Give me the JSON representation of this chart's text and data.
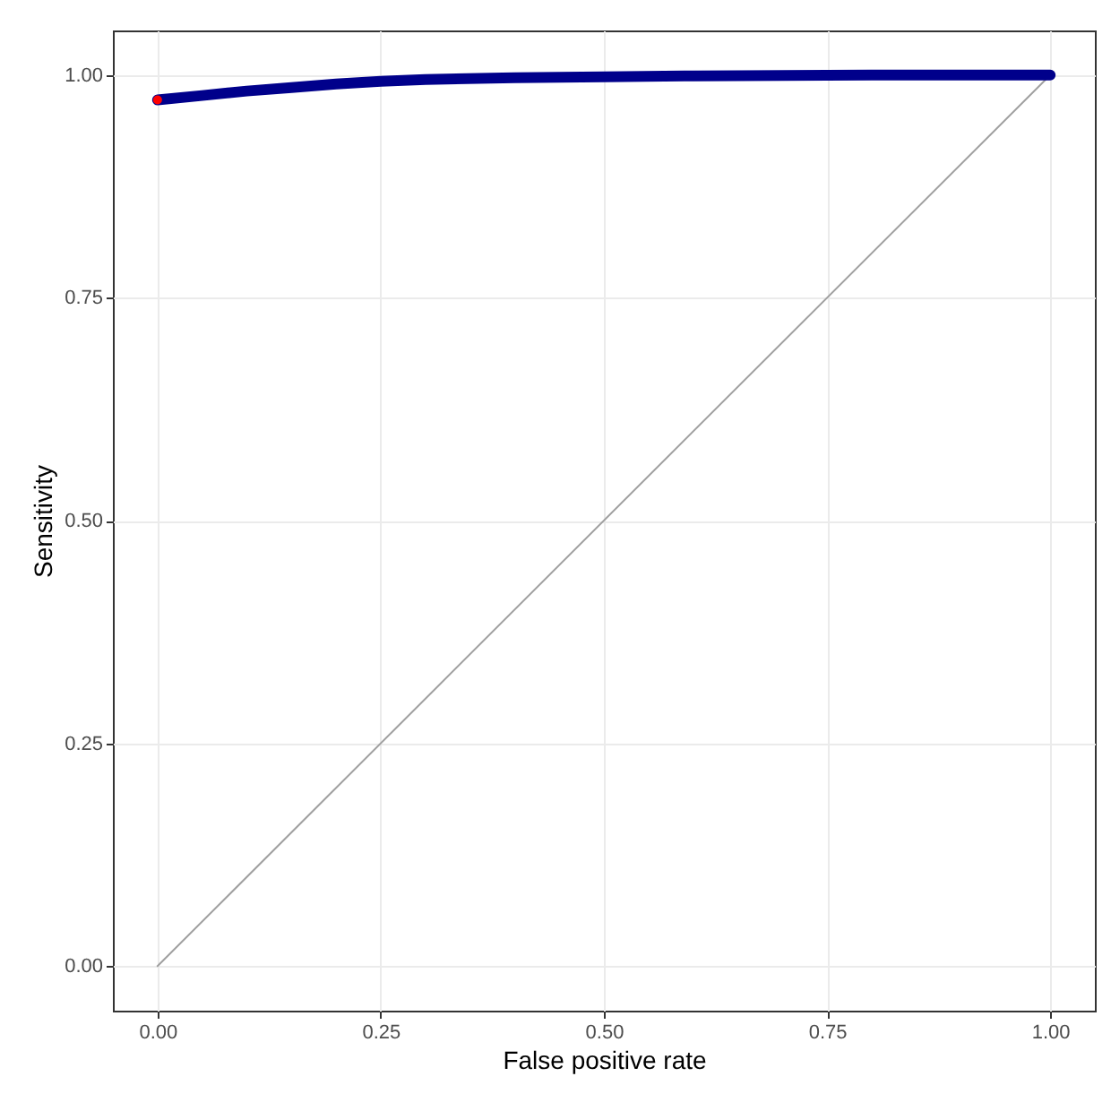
{
  "chart_data": {
    "type": "line",
    "xlabel": "False positive rate",
    "ylabel": "Sensitivity",
    "xlim": [
      -0.05,
      1.05
    ],
    "ylim": [
      -0.05,
      1.05
    ],
    "xticks": [
      {
        "value": 0,
        "label": "0.00"
      },
      {
        "value": 0.25,
        "label": "0.25"
      },
      {
        "value": 0.5,
        "label": "0.50"
      },
      {
        "value": 0.75,
        "label": "0.75"
      },
      {
        "value": 1,
        "label": "1.00"
      }
    ],
    "yticks": [
      {
        "value": 0,
        "label": "0.00"
      },
      {
        "value": 0.25,
        "label": "0.25"
      },
      {
        "value": 0.5,
        "label": "0.50"
      },
      {
        "value": 0.75,
        "label": "0.75"
      },
      {
        "value": 1,
        "label": "1.00"
      }
    ],
    "grid": true,
    "series": [
      {
        "color": "#a0a0a0",
        "x": [
          0,
          1
        ],
        "values": [
          0,
          1
        ]
      },
      {
        "color": "#00008b",
        "x": [
          0,
          0.05,
          0.1,
          0.15,
          0.2,
          0.25,
          0.3,
          0.4,
          0.5,
          0.6,
          0.8,
          1
        ],
        "values": [
          0.972,
          0.977,
          0.982,
          0.986,
          0.99,
          0.993,
          0.995,
          0.997,
          0.998,
          0.999,
          1,
          1
        ]
      },
      {
        "type": "scatter",
        "color": "#ff0000",
        "x": [
          0
        ],
        "values": [
          0.972
        ]
      }
    ]
  }
}
